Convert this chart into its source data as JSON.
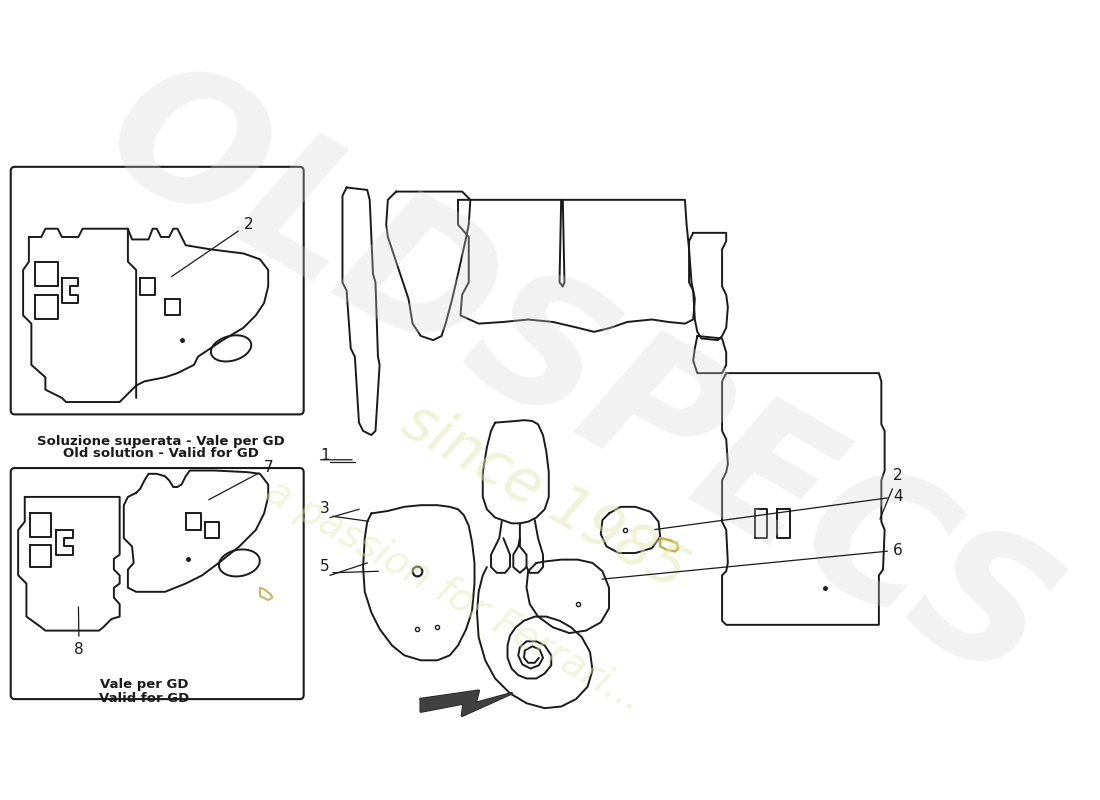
{
  "bg_color": "#ffffff",
  "line_color": "#1a1a1a",
  "box1_label_it": "Soluzione superata - Vale per GD",
  "box1_label_en": "Old solution - Valid for GD",
  "box2_label_it": "Vale per GD",
  "box2_label_en": "Valid for GD",
  "lw": 1.4
}
